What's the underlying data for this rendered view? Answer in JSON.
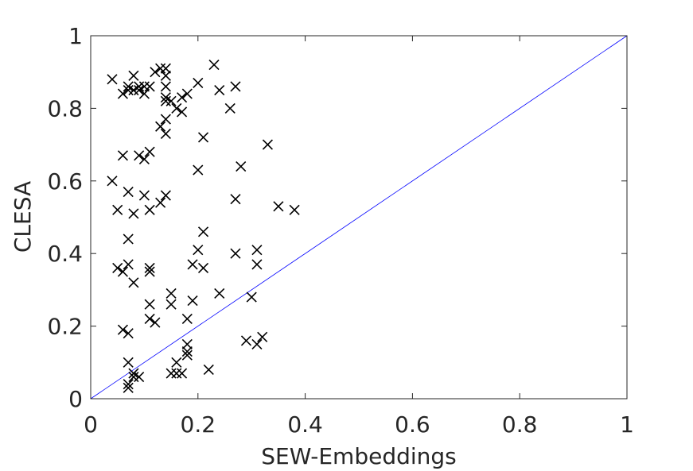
{
  "chart_data": {
    "type": "scatter",
    "xlabel": "SEW-Embeddings",
    "ylabel": "CLESA",
    "xlim": [
      0,
      1
    ],
    "ylim": [
      0,
      1
    ],
    "xticks": [
      "0",
      "0.2",
      "0.4",
      "0.6",
      "0.8",
      "1"
    ],
    "yticks": [
      "0",
      "0.2",
      "0.4",
      "0.6",
      "0.8",
      "1"
    ],
    "grid": false,
    "marker": "x",
    "marker_color": "#000000",
    "reference_line": {
      "from": [
        0,
        0
      ],
      "to": [
        1,
        1
      ],
      "color": "#0000ff"
    },
    "points": [
      [
        0.04,
        0.88
      ],
      [
        0.06,
        0.84
      ],
      [
        0.07,
        0.85
      ],
      [
        0.07,
        0.86
      ],
      [
        0.08,
        0.89
      ],
      [
        0.08,
        0.85
      ],
      [
        0.09,
        0.86
      ],
      [
        0.09,
        0.85
      ],
      [
        0.1,
        0.84
      ],
      [
        0.1,
        0.86
      ],
      [
        0.11,
        0.86
      ],
      [
        0.12,
        0.9
      ],
      [
        0.13,
        0.91
      ],
      [
        0.14,
        0.91
      ],
      [
        0.14,
        0.89
      ],
      [
        0.14,
        0.86
      ],
      [
        0.14,
        0.83
      ],
      [
        0.14,
        0.82
      ],
      [
        0.15,
        0.82
      ],
      [
        0.16,
        0.8
      ],
      [
        0.17,
        0.83
      ],
      [
        0.18,
        0.84
      ],
      [
        0.2,
        0.87
      ],
      [
        0.23,
        0.92
      ],
      [
        0.24,
        0.85
      ],
      [
        0.26,
        0.8
      ],
      [
        0.27,
        0.86
      ],
      [
        0.13,
        0.75
      ],
      [
        0.14,
        0.77
      ],
      [
        0.14,
        0.73
      ],
      [
        0.17,
        0.79
      ],
      [
        0.06,
        0.67
      ],
      [
        0.09,
        0.67
      ],
      [
        0.1,
        0.66
      ],
      [
        0.11,
        0.68
      ],
      [
        0.04,
        0.6
      ],
      [
        0.07,
        0.57
      ],
      [
        0.05,
        0.52
      ],
      [
        0.08,
        0.51
      ],
      [
        0.1,
        0.56
      ],
      [
        0.11,
        0.52
      ],
      [
        0.13,
        0.54
      ],
      [
        0.14,
        0.56
      ],
      [
        0.2,
        0.63
      ],
      [
        0.21,
        0.72
      ],
      [
        0.28,
        0.64
      ],
      [
        0.33,
        0.7
      ],
      [
        0.27,
        0.55
      ],
      [
        0.35,
        0.53
      ],
      [
        0.38,
        0.52
      ],
      [
        0.07,
        0.44
      ],
      [
        0.05,
        0.36
      ],
      [
        0.06,
        0.35
      ],
      [
        0.07,
        0.37
      ],
      [
        0.08,
        0.32
      ],
      [
        0.11,
        0.36
      ],
      [
        0.11,
        0.35
      ],
      [
        0.19,
        0.37
      ],
      [
        0.2,
        0.41
      ],
      [
        0.21,
        0.46
      ],
      [
        0.21,
        0.36
      ],
      [
        0.27,
        0.4
      ],
      [
        0.31,
        0.41
      ],
      [
        0.31,
        0.37
      ],
      [
        0.11,
        0.26
      ],
      [
        0.11,
        0.22
      ],
      [
        0.12,
        0.21
      ],
      [
        0.15,
        0.29
      ],
      [
        0.15,
        0.26
      ],
      [
        0.18,
        0.22
      ],
      [
        0.19,
        0.27
      ],
      [
        0.24,
        0.29
      ],
      [
        0.3,
        0.28
      ],
      [
        0.06,
        0.19
      ],
      [
        0.07,
        0.18
      ],
      [
        0.07,
        0.1
      ],
      [
        0.07,
        0.04
      ],
      [
        0.07,
        0.03
      ],
      [
        0.08,
        0.07
      ],
      [
        0.08,
        0.06
      ],
      [
        0.09,
        0.06
      ],
      [
        0.15,
        0.07
      ],
      [
        0.16,
        0.1
      ],
      [
        0.16,
        0.07
      ],
      [
        0.17,
        0.07
      ],
      [
        0.18,
        0.15
      ],
      [
        0.18,
        0.13
      ],
      [
        0.18,
        0.12
      ],
      [
        0.22,
        0.08
      ],
      [
        0.29,
        0.16
      ],
      [
        0.31,
        0.15
      ],
      [
        0.32,
        0.17
      ]
    ]
  }
}
